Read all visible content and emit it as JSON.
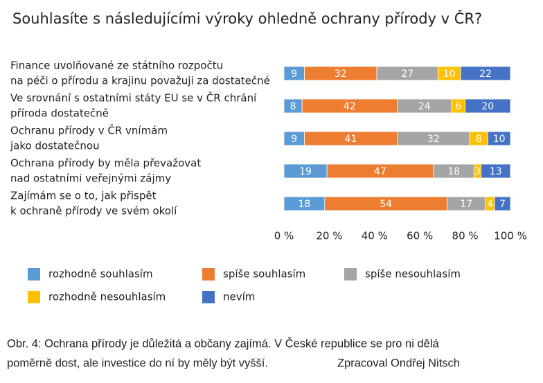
{
  "chart_data": {
    "type": "stacked-bar-horizontal",
    "title": "Souhlasíte s následujícími výroky ohledně ochrany přírody v ČR?",
    "categories": [
      [
        "Finance uvolňované ze státního rozpočtu",
        "na péči o přírodu a krajinu považuji za dostatečné"
      ],
      [
        "Ve srovnání s ostatními státy EU se v ČR chrání",
        "příroda dostatečně"
      ],
      [
        "Ochranu přírody v ČR vnímám",
        "jako dostatečnou"
      ],
      [
        "Ochrana přírody by měla převažovat",
        "nad ostatními veřejnými zájmy"
      ],
      [
        "Zajímám se o to, jak přispět",
        "k ochraně přírody ve svém okolí"
      ]
    ],
    "series": [
      {
        "name": "rozhodně souhlasím",
        "color": "#5b9bd5",
        "values": [
          9,
          8,
          9,
          19,
          18
        ]
      },
      {
        "name": "spíše souhlasím",
        "color": "#ed7d31",
        "values": [
          32,
          42,
          41,
          47,
          54
        ]
      },
      {
        "name": "spíše nesouhlasím",
        "color": "#a5a5a5",
        "values": [
          27,
          24,
          32,
          18,
          17
        ]
      },
      {
        "name": "rozhodně nesouhlasím",
        "color": "#ffc000",
        "values": [
          10,
          6,
          8,
          3,
          4
        ]
      },
      {
        "name": "nevím",
        "color": "#4472c4",
        "values": [
          22,
          20,
          10,
          13,
          7
        ]
      }
    ],
    "xlim": [
      0,
      100
    ],
    "xticks": [
      {
        "value": 0,
        "label": "0 %"
      },
      {
        "value": 20,
        "label": "20 %"
      },
      {
        "value": 40,
        "label": "40 %"
      },
      {
        "value": 60,
        "label": "60 %"
      },
      {
        "value": 80,
        "label": "80 %"
      },
      {
        "value": 100,
        "label": "100 %"
      }
    ],
    "grid": false
  },
  "caption": {
    "lines": [
      "Obr. 4: Ochrana přírody je důležitá a občany zajímá. V České republice se pro ni dělá",
      "poměrně dost, ale investice do ní by měly být vyšší."
    ],
    "credit": "Zpracoval Ondřej Nitsch"
  }
}
